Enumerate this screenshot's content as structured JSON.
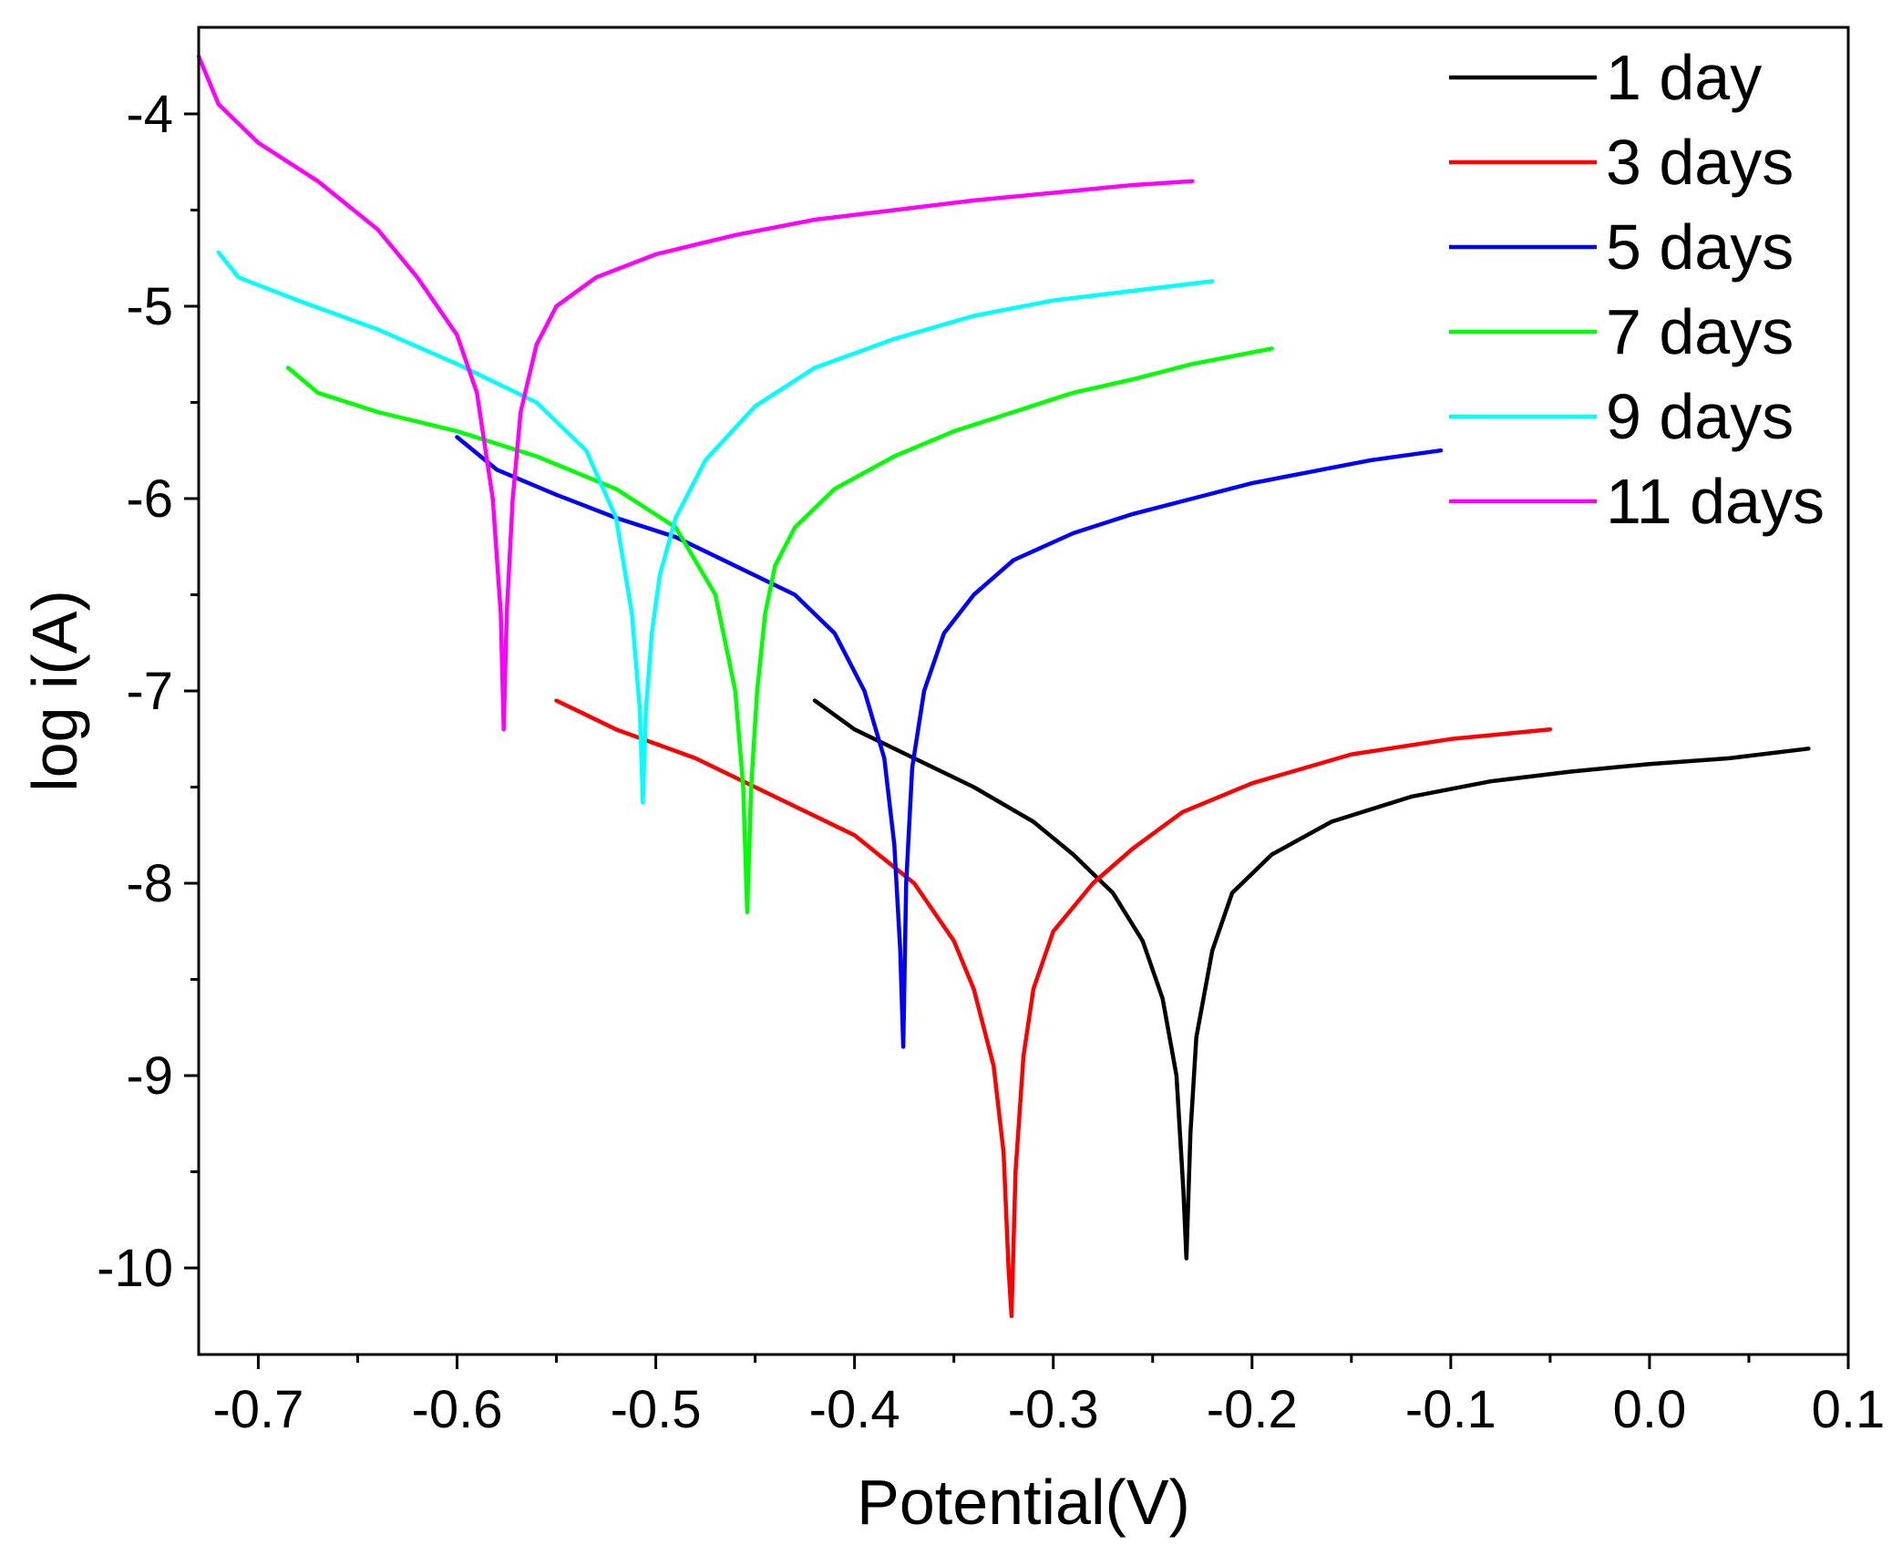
{
  "chart_data": {
    "type": "line",
    "title": "",
    "xlabel": "Potential(V)",
    "ylabel": "log i(A)",
    "xlim": [
      -0.73,
      0.1
    ],
    "ylim": [
      -10.45,
      -3.55
    ],
    "x_ticks": [
      -0.7,
      -0.6,
      -0.5,
      -0.4,
      -0.3,
      -0.2,
      -0.1,
      0.0,
      0.1
    ],
    "x_tick_labels": [
      "-0.7",
      "-0.6",
      "-0.5",
      "-0.4",
      "-0.3",
      "-0.2",
      "-0.1",
      "0.0",
      "0.1"
    ],
    "y_ticks": [
      -4,
      -5,
      -6,
      -7,
      -8,
      -9,
      -10
    ],
    "y_tick_labels": [
      "-4",
      "-5",
      "-6",
      "-7",
      "-8",
      "-9",
      "-10"
    ],
    "grid": false,
    "legend_position": "top-right",
    "series": [
      {
        "name": "1 day",
        "color": "#000000",
        "x": [
          -0.42,
          -0.4,
          -0.37,
          -0.34,
          -0.31,
          -0.29,
          -0.27,
          -0.255,
          -0.245,
          -0.238,
          -0.2345,
          -0.233,
          -0.231,
          -0.228,
          -0.22,
          -0.21,
          -0.19,
          -0.16,
          -0.12,
          -0.08,
          -0.04,
          0.0,
          0.04,
          0.08
        ],
        "y": [
          -7.05,
          -7.2,
          -7.35,
          -7.5,
          -7.68,
          -7.85,
          -8.05,
          -8.3,
          -8.6,
          -9.0,
          -9.6,
          -9.95,
          -9.3,
          -8.8,
          -8.35,
          -8.05,
          -7.85,
          -7.68,
          -7.55,
          -7.47,
          -7.42,
          -7.38,
          -7.35,
          -7.3
        ]
      },
      {
        "name": "3 days",
        "color": "#ff0000",
        "x": [
          -0.55,
          -0.52,
          -0.48,
          -0.44,
          -0.4,
          -0.37,
          -0.35,
          -0.34,
          -0.33,
          -0.325,
          -0.3225,
          -0.321,
          -0.319,
          -0.315,
          -0.31,
          -0.3,
          -0.28,
          -0.26,
          -0.235,
          -0.2,
          -0.15,
          -0.1,
          -0.05
        ],
        "y": [
          -7.05,
          -7.2,
          -7.35,
          -7.55,
          -7.75,
          -8.0,
          -8.3,
          -8.55,
          -8.95,
          -9.4,
          -10.0,
          -10.25,
          -9.5,
          -8.9,
          -8.55,
          -8.25,
          -8.0,
          -7.82,
          -7.63,
          -7.48,
          -7.33,
          -7.25,
          -7.2
        ]
      },
      {
        "name": "5 days",
        "color": "#0000ff",
        "x": [
          -0.6,
          -0.58,
          -0.55,
          -0.52,
          -0.49,
          -0.46,
          -0.43,
          -0.41,
          -0.395,
          -0.385,
          -0.38,
          -0.377,
          -0.3755,
          -0.374,
          -0.371,
          -0.365,
          -0.355,
          -0.34,
          -0.32,
          -0.29,
          -0.26,
          -0.23,
          -0.2,
          -0.17,
          -0.14,
          -0.105
        ],
        "y": [
          -5.68,
          -5.85,
          -5.98,
          -6.1,
          -6.2,
          -6.35,
          -6.5,
          -6.7,
          -7.0,
          -7.35,
          -7.8,
          -8.35,
          -8.85,
          -8.0,
          -7.4,
          -7.0,
          -6.7,
          -6.5,
          -6.32,
          -6.18,
          -6.08,
          -6.0,
          -5.92,
          -5.86,
          -5.8,
          -5.75
        ]
      },
      {
        "name": "7 days",
        "color": "#00ff00",
        "x": [
          -0.685,
          -0.67,
          -0.64,
          -0.6,
          -0.56,
          -0.52,
          -0.49,
          -0.47,
          -0.46,
          -0.456,
          -0.454,
          -0.452,
          -0.449,
          -0.445,
          -0.44,
          -0.43,
          -0.41,
          -0.38,
          -0.35,
          -0.32,
          -0.29,
          -0.26,
          -0.23,
          -0.19
        ],
        "y": [
          -5.32,
          -5.45,
          -5.55,
          -5.65,
          -5.78,
          -5.95,
          -6.15,
          -6.5,
          -7.0,
          -7.5,
          -8.15,
          -7.5,
          -7.0,
          -6.6,
          -6.35,
          -6.15,
          -5.95,
          -5.78,
          -5.65,
          -5.55,
          -5.45,
          -5.38,
          -5.3,
          -5.22
        ]
      },
      {
        "name": "9 days",
        "color": "#00ffff",
        "x": [
          -0.72,
          -0.71,
          -0.68,
          -0.64,
          -0.6,
          -0.56,
          -0.535,
          -0.52,
          -0.512,
          -0.508,
          -0.5065,
          -0.505,
          -0.502,
          -0.498,
          -0.49,
          -0.475,
          -0.45,
          -0.42,
          -0.38,
          -0.34,
          -0.3,
          -0.26,
          -0.22
        ],
        "y": [
          -4.72,
          -4.85,
          -4.97,
          -5.12,
          -5.3,
          -5.5,
          -5.75,
          -6.1,
          -6.6,
          -7.1,
          -7.58,
          -7.1,
          -6.7,
          -6.4,
          -6.1,
          -5.8,
          -5.52,
          -5.32,
          -5.17,
          -5.05,
          -4.97,
          -4.92,
          -4.87
        ]
      },
      {
        "name": "11 days",
        "color": "#ff00ff",
        "x": [
          -0.73,
          -0.72,
          -0.7,
          -0.67,
          -0.64,
          -0.62,
          -0.6,
          -0.59,
          -0.582,
          -0.578,
          -0.5765,
          -0.575,
          -0.572,
          -0.568,
          -0.56,
          -0.55,
          -0.53,
          -0.5,
          -0.46,
          -0.42,
          -0.38,
          -0.34,
          -0.3,
          -0.26,
          -0.23
        ],
        "y": [
          -3.7,
          -3.95,
          -4.15,
          -4.35,
          -4.6,
          -4.85,
          -5.15,
          -5.45,
          -6.0,
          -6.6,
          -7.2,
          -6.6,
          -6.0,
          -5.55,
          -5.2,
          -5.0,
          -4.85,
          -4.73,
          -4.63,
          -4.55,
          -4.5,
          -4.45,
          -4.41,
          -4.37,
          -4.35
        ]
      }
    ]
  }
}
